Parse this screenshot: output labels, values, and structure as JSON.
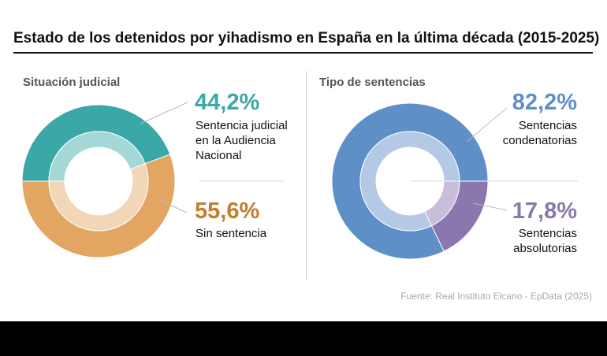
{
  "title": "Estado de los detenidos por yihadismo en España en la última década (2015-2025)",
  "source": "Fuente: Real Instituto Elcano - EpData (2025)",
  "chart_data": [
    {
      "type": "pie",
      "title": "Situación judicial",
      "slices": [
        {
          "label": "Sentencia judicial en la Audiencia Nacional",
          "value": 44.2,
          "value_label": "44,2%",
          "color": "#3aa8a6",
          "inner_color": "#a3d8d7"
        },
        {
          "label": "Sin sentencia",
          "value": 55.6,
          "value_label": "55,6%",
          "color": "#e2a562",
          "inner_color": "#f1d6b7"
        }
      ]
    },
    {
      "type": "pie",
      "title": "Tipo de sentencias",
      "slices": [
        {
          "label": "Sentencias condenatorias",
          "value": 82.2,
          "value_label": "82,2%",
          "color": "#5f8fc7",
          "inner_color": "#b3c9e6"
        },
        {
          "label": "Sentencias absolutorias",
          "value": 17.8,
          "value_label": "17,8%",
          "color": "#8977ad",
          "inner_color": "#c8bedb"
        }
      ]
    }
  ],
  "labels": {
    "left_a": [
      "Sentencia judicial",
      "en la Audiencia",
      "Nacional"
    ],
    "left_b": [
      "Sin sentencia"
    ],
    "right_a": [
      "Sentencias",
      "condenatorias"
    ],
    "right_b": [
      "Sentencias",
      "absolutorias"
    ]
  }
}
